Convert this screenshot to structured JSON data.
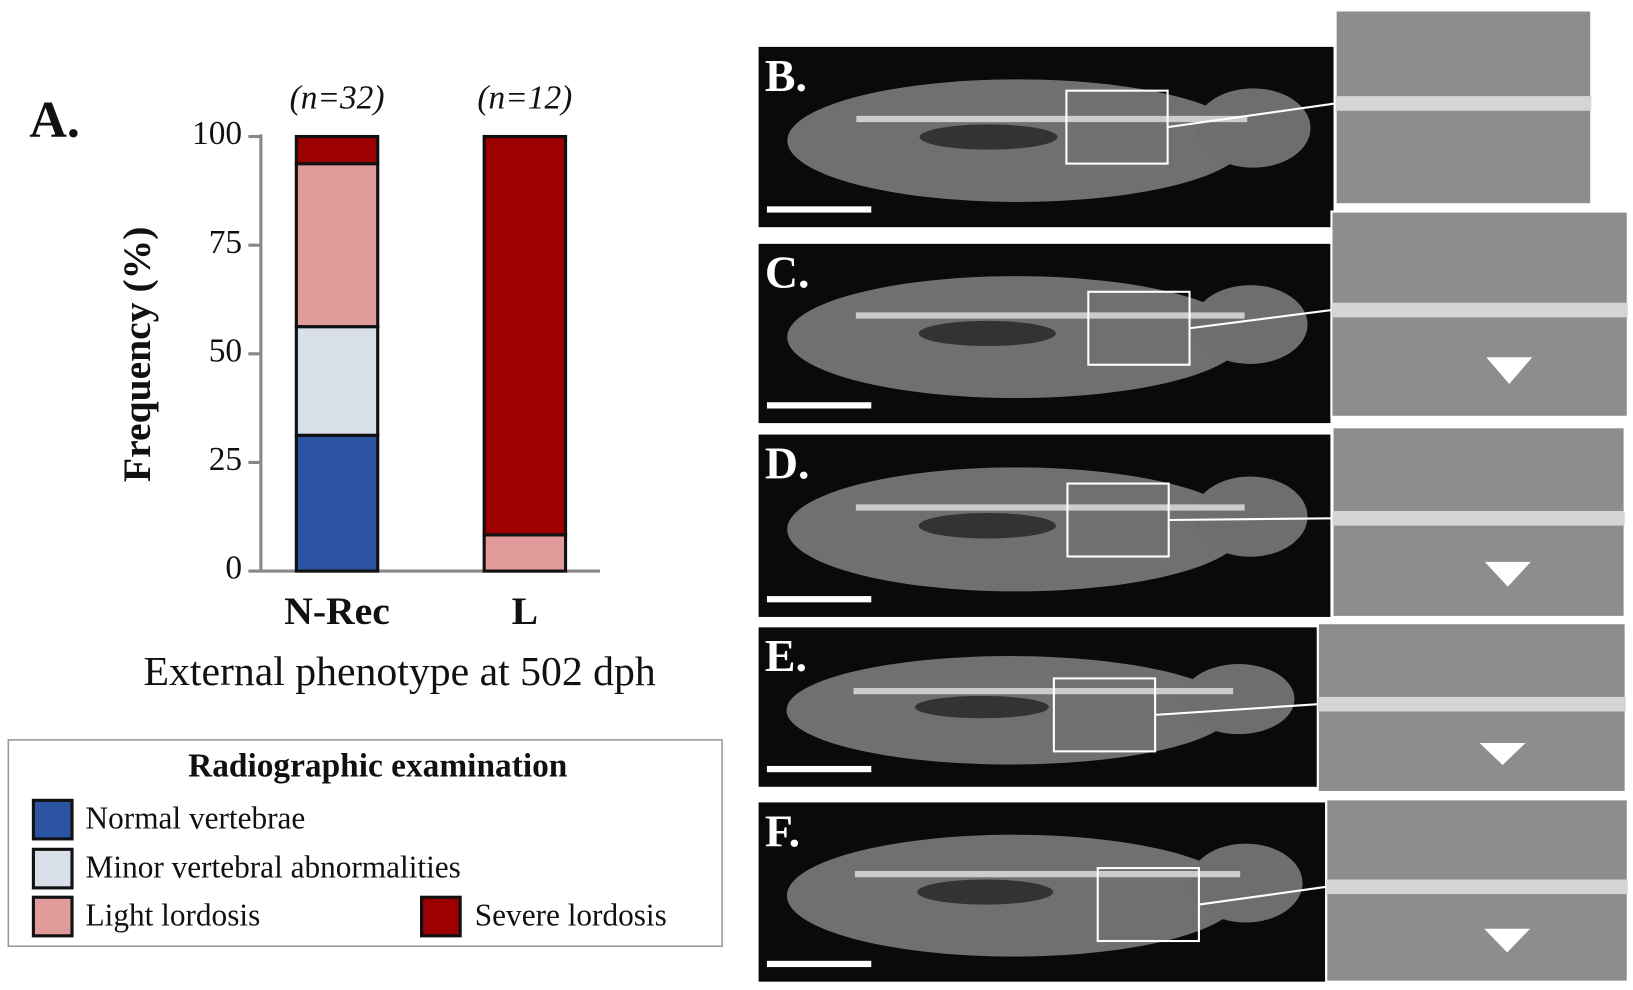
{
  "chart_data": {
    "type": "bar",
    "stacked": true,
    "panel_label": "A.",
    "ylabel": "Frequency (%)",
    "xlabel": "External phenotype at 502 dph",
    "categories": [
      "N-Rec",
      "L"
    ],
    "annotations": [
      "(n=32)",
      "(n=12)"
    ],
    "ylim": [
      0,
      100
    ],
    "yticks": [
      0,
      25,
      50,
      75,
      100
    ],
    "legend_title": "Radiographic examination",
    "series": [
      {
        "name": "Normal vertebrae",
        "color": "#2b55a3",
        "values": [
          31.25,
          0
        ]
      },
      {
        "name": "Minor vertebral abnormalities",
        "color": "#d9dfe9",
        "values": [
          25,
          0
        ]
      },
      {
        "name": "Light lordosis",
        "color": "#e29b9b",
        "values": [
          37.5,
          8.33
        ]
      },
      {
        "name": "Severe lordosis",
        "color": "#9c0000",
        "values": [
          6.25,
          91.67
        ]
      }
    ]
  },
  "panels": [
    {
      "label": "B."
    },
    {
      "label": "C."
    },
    {
      "label": "D."
    },
    {
      "label": "E."
    },
    {
      "label": "F."
    }
  ]
}
